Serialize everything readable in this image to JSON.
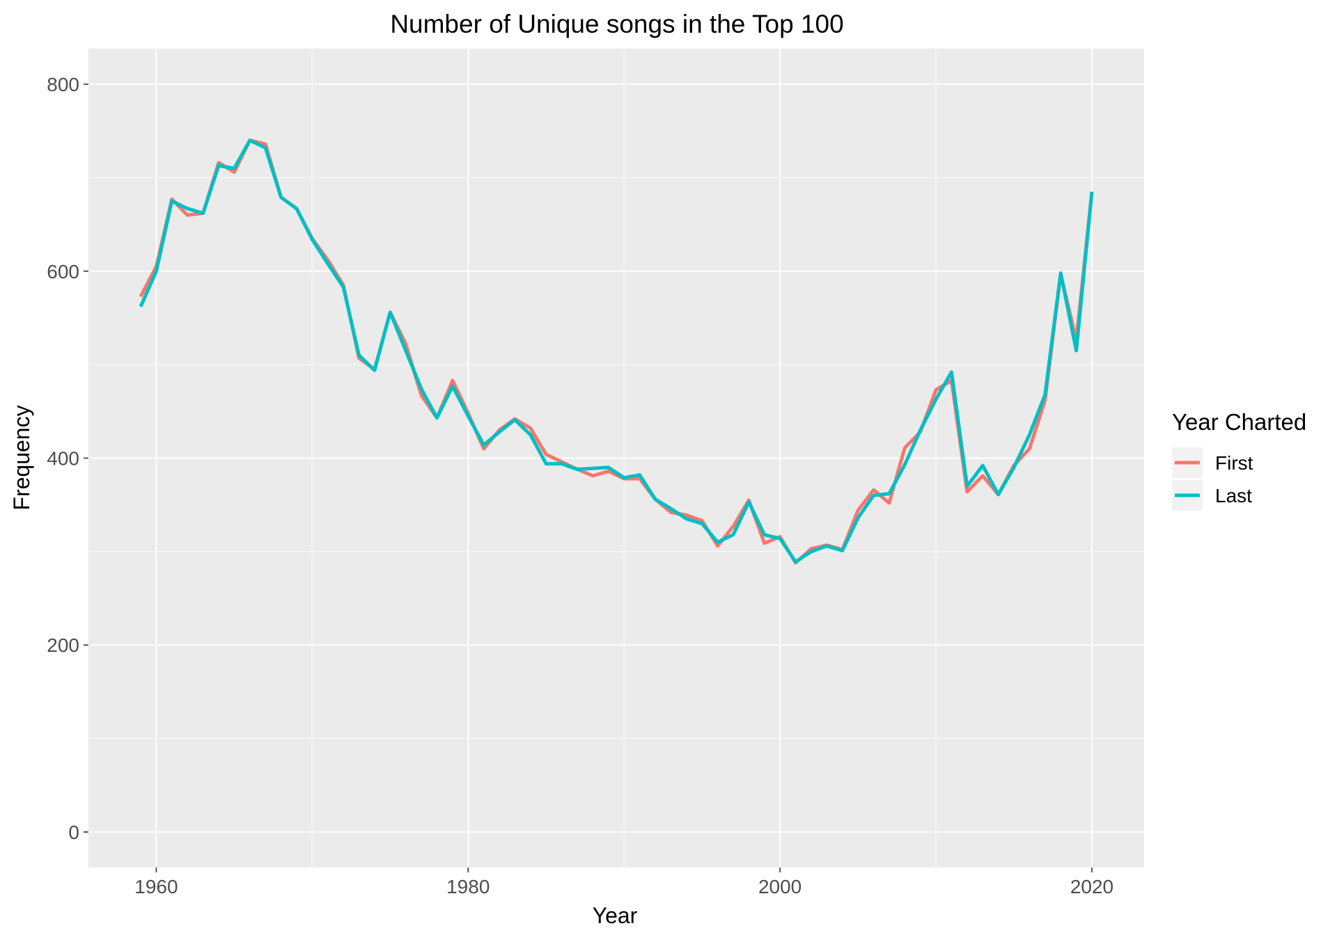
{
  "chart_data": {
    "type": "line",
    "title": "Number of Unique songs in the Top 100",
    "xlabel": "Year",
    "ylabel": "Frequency",
    "xlim": [
      1955.65,
      1963.35
    ],
    "ylim": [
      -38,
      838
    ],
    "x_ticks": [
      1960,
      1980,
      2000,
      2020
    ],
    "y_ticks": [
      0,
      200,
      400,
      600,
      800
    ],
    "grid": true,
    "legend": {
      "title": "Year Charted",
      "position": "right"
    },
    "x": [
      1959,
      1960,
      1961,
      1962,
      1963,
      1964,
      1965,
      1966,
      1967,
      1968,
      1969,
      1970,
      1971,
      1972,
      1973,
      1974,
      1975,
      1976,
      1977,
      1978,
      1979,
      1980,
      1981,
      1982,
      1983,
      1984,
      1985,
      1986,
      1987,
      1988,
      1989,
      1990,
      1991,
      1992,
      1993,
      1994,
      1995,
      1996,
      1997,
      1998,
      1999,
      2000,
      2001,
      2002,
      2003,
      2004,
      2005,
      2006,
      2007,
      2008,
      2009,
      2010,
      2011,
      2012,
      2013,
      2014,
      2015,
      2016,
      2017,
      2018,
      2019,
      2020
    ],
    "series": [
      {
        "name": "First",
        "color": "#F8766D",
        "values": [
          573,
          605,
          677,
          660,
          662,
          716,
          706,
          740,
          736,
          679,
          667,
          635,
          612,
          585,
          507,
          495,
          556,
          522,
          467,
          443,
          483,
          448,
          410,
          430,
          442,
          432,
          404,
          396,
          388,
          381,
          386,
          378,
          378,
          356,
          342,
          339,
          333,
          306,
          327,
          355,
          309,
          316,
          288,
          303,
          307,
          302,
          344,
          366,
          352,
          411,
          428,
          473,
          483,
          364,
          381,
          361,
          392,
          410,
          462,
          597,
          526,
          685
        ]
      },
      {
        "name": "Last",
        "color": "#00BFC4",
        "values": [
          562,
          600,
          675,
          667,
          662,
          713,
          710,
          740,
          732,
          679,
          667,
          634,
          608,
          583,
          510,
          494,
          556,
          515,
          474,
          443,
          477,
          445,
          414,
          428,
          441,
          425,
          394,
          394,
          388,
          389,
          390,
          379,
          382,
          356,
          346,
          335,
          330,
          310,
          318,
          353,
          318,
          314,
          289,
          300,
          306,
          301,
          336,
          360,
          362,
          393,
          430,
          463,
          492,
          370,
          392,
          361,
          390,
          425,
          468,
          598,
          515,
          685
        ]
      }
    ]
  }
}
